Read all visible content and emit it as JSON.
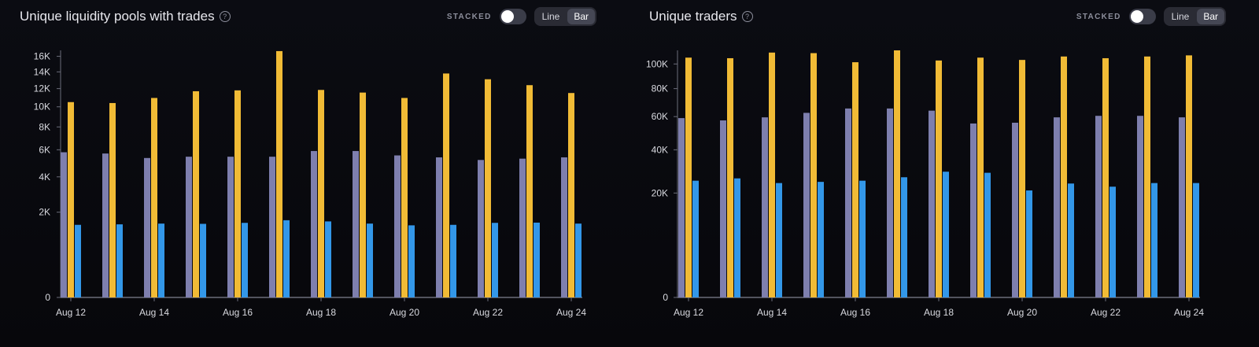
{
  "panels": [
    {
      "title": "Unique liquidity pools with trades",
      "stacked_label": "STACKED",
      "toggle_line": "Line",
      "toggle_bar": "Bar"
    },
    {
      "title": "Unique traders",
      "stacked_label": "STACKED",
      "toggle_line": "Line",
      "toggle_bar": "Bar"
    }
  ],
  "colors": {
    "series_a": "#7e7fae",
    "series_b": "#f1bb36",
    "series_c": "#3397e8",
    "axis": "#6b6d7a"
  },
  "chart_data": [
    {
      "type": "bar",
      "title": "Unique liquidity pools with trades",
      "scale": "sqrt",
      "ylim": [
        0,
        16800
      ],
      "y_ticks": [
        0,
        2000,
        4000,
        6000,
        8000,
        10000,
        12000,
        14000,
        16000
      ],
      "y_tick_labels": [
        "0",
        "2K",
        "4K",
        "6K",
        "8K",
        "10K",
        "12K",
        "14K",
        "16K"
      ],
      "categories": [
        "Aug 12",
        "Aug 13",
        "Aug 14",
        "Aug 15",
        "Aug 16",
        "Aug 17",
        "Aug 18",
        "Aug 19",
        "Aug 20",
        "Aug 21",
        "Aug 22",
        "Aug 23",
        "Aug 24"
      ],
      "x_tick_labels": [
        "Aug 12",
        "Aug 14",
        "Aug 16",
        "Aug 18",
        "Aug 20",
        "Aug 22",
        "Aug 24"
      ],
      "grid": false,
      "series": [
        {
          "values": [
            5800,
            5700,
            5350,
            5450,
            5450,
            5450,
            5900,
            5900,
            5550,
            5400,
            5200,
            5300,
            5400
          ]
        },
        {
          "values": [
            10500,
            10400,
            10950,
            11700,
            11800,
            16700,
            11850,
            11550,
            10950,
            13800,
            13100,
            12400,
            11500
          ]
        },
        {
          "values": [
            1450,
            1470,
            1500,
            1490,
            1530,
            1640,
            1590,
            1500,
            1430,
            1450,
            1530,
            1540,
            1500
          ]
        }
      ]
    },
    {
      "type": "bar",
      "title": "Unique traders",
      "scale": "sqrt",
      "ylim": [
        0,
        112000
      ],
      "y_ticks": [
        0,
        20000,
        40000,
        60000,
        80000,
        100000
      ],
      "y_tick_labels": [
        "0",
        "20K",
        "40K",
        "60K",
        "80K",
        "100K"
      ],
      "categories": [
        "Aug 12",
        "Aug 13",
        "Aug 14",
        "Aug 15",
        "Aug 16",
        "Aug 17",
        "Aug 18",
        "Aug 19",
        "Aug 20",
        "Aug 21",
        "Aug 22",
        "Aug 23",
        "Aug 24"
      ],
      "x_tick_labels": [
        "Aug 12",
        "Aug 14",
        "Aug 16",
        "Aug 18",
        "Aug 20",
        "Aug 22",
        "Aug 24"
      ],
      "grid": false,
      "series": [
        {
          "values": [
            59000,
            57500,
            59500,
            62500,
            65500,
            65500,
            64000,
            55500,
            56000,
            59500,
            60500,
            60500,
            59500
          ]
        },
        {
          "values": [
            105500,
            105000,
            110000,
            109500,
            101500,
            112000,
            103000,
            105500,
            103500,
            106500,
            105000,
            106500,
            107500
          ]
        },
        {
          "values": [
            25000,
            26000,
            24000,
            24500,
            25000,
            26500,
            29000,
            28500,
            21000,
            23800,
            22500,
            24000,
            24000
          ]
        }
      ]
    }
  ]
}
